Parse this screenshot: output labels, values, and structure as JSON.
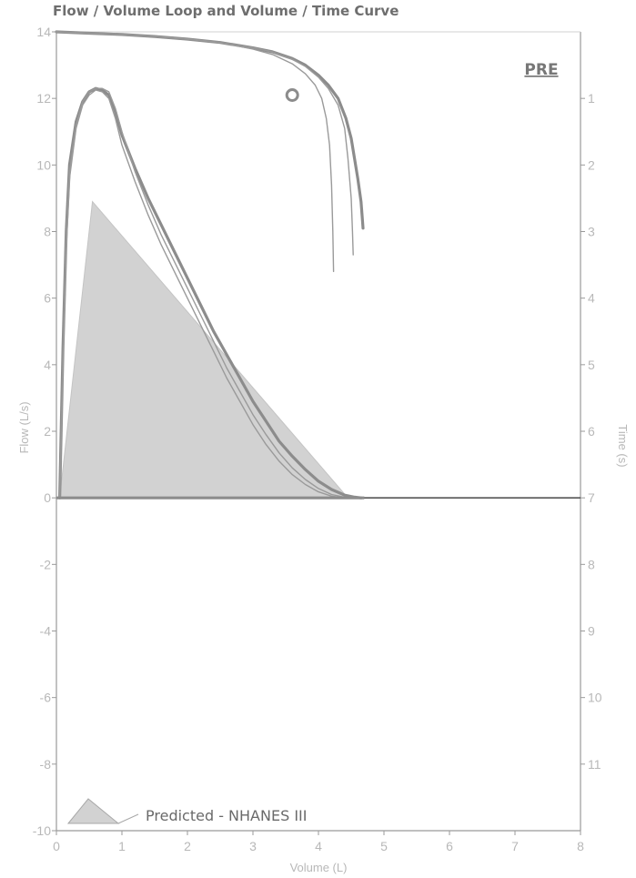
{
  "colors": {
    "predicted_fill": "#d2d2d2",
    "trial_curve": "#9a9a9a",
    "best_curve": "#8c8c8c",
    "axis": "#9a9a9a",
    "zero_line": "#555555"
  },
  "chart_data": {
    "type": "line",
    "title": "Flow / Volume Loop and Volume / Time Curve",
    "label": "PRE",
    "xlabel": "Volume (L)",
    "ylabel": "Flow (L/s)",
    "y2label": "Time (s)",
    "xlim": [
      0,
      8
    ],
    "ylim": [
      -10,
      14
    ],
    "y2lim": [
      0,
      12
    ],
    "y2_inverted": true,
    "xticks": [
      "0",
      "1",
      "2",
      "3",
      "4",
      "5",
      "6",
      "7",
      "8"
    ],
    "yticks": [
      "-10",
      "-8",
      "-6",
      "-4",
      "-2",
      "0",
      "2",
      "4",
      "6",
      "8",
      "10",
      "12",
      "14"
    ],
    "y2ticks": [
      "1",
      "2",
      "3",
      "4",
      "5",
      "6",
      "7",
      "8",
      "9",
      "10",
      "11"
    ],
    "grid": false,
    "legend": {
      "position": "bottom-left",
      "label": "Predicted - NHANES III"
    },
    "predicted": {
      "name": "Predicted - NHANES III",
      "x": [
        0.05,
        0.55,
        4.45
      ],
      "y": [
        0,
        8.9,
        0
      ]
    },
    "series": [
      {
        "kind": "flow_volume",
        "x": [
          0.05,
          0.1,
          0.15,
          0.2,
          0.3,
          0.4,
          0.5,
          0.6,
          0.7,
          0.8,
          0.9,
          1.0,
          1.2,
          1.4,
          1.6,
          1.8,
          2.0,
          2.2,
          2.4,
          2.6,
          2.8,
          3.0,
          3.2,
          3.4,
          3.6,
          3.8,
          4.0,
          4.2,
          4.4,
          4.55,
          4.65
        ],
        "y": [
          0,
          4.5,
          8.0,
          10.0,
          11.3,
          11.9,
          12.2,
          12.3,
          12.25,
          12.1,
          11.6,
          10.9,
          9.9,
          9.0,
          8.2,
          7.4,
          6.6,
          5.8,
          5.0,
          4.3,
          3.6,
          2.9,
          2.3,
          1.7,
          1.25,
          0.85,
          0.5,
          0.25,
          0.08,
          0.02,
          0
        ]
      },
      {
        "kind": "flow_volume",
        "x": [
          0.05,
          0.1,
          0.15,
          0.2,
          0.3,
          0.4,
          0.5,
          0.6,
          0.7,
          0.8,
          0.9,
          1.0,
          1.2,
          1.4,
          1.6,
          1.8,
          2.0,
          2.2,
          2.4,
          2.6,
          2.8,
          3.0,
          3.2,
          3.4,
          3.6,
          3.8,
          4.0,
          4.2,
          4.4
        ],
        "y": [
          0,
          4.0,
          7.5,
          9.6,
          11.1,
          11.8,
          12.1,
          12.25,
          12.2,
          12.0,
          11.4,
          10.6,
          9.5,
          8.5,
          7.6,
          6.8,
          6.0,
          5.2,
          4.4,
          3.6,
          2.9,
          2.2,
          1.6,
          1.1,
          0.7,
          0.4,
          0.18,
          0.05,
          0
        ]
      },
      {
        "kind": "flow_volume",
        "x": [
          0.05,
          0.1,
          0.15,
          0.2,
          0.3,
          0.4,
          0.5,
          0.6,
          0.7,
          0.8,
          0.9,
          1.0,
          1.2,
          1.4,
          1.6,
          1.8,
          2.0,
          2.2,
          2.4,
          2.6,
          2.8,
          3.0,
          3.2,
          3.4,
          3.6,
          3.8,
          4.0,
          4.2,
          4.4,
          4.5
        ],
        "y": [
          0,
          4.2,
          7.8,
          9.8,
          11.2,
          11.9,
          12.2,
          12.3,
          12.3,
          12.2,
          11.7,
          11.0,
          9.8,
          8.8,
          7.9,
          7.1,
          6.3,
          5.5,
          4.7,
          3.9,
          3.2,
          2.5,
          1.9,
          1.35,
          0.9,
          0.55,
          0.28,
          0.1,
          0.02,
          0
        ]
      },
      {
        "kind": "volume_time",
        "x": [
          0,
          0.5,
          1.0,
          1.5,
          2.0,
          2.5,
          3.0,
          3.3,
          3.6,
          3.8,
          4.0,
          4.15,
          4.3,
          4.42,
          4.5,
          4.55,
          4.6,
          4.65,
          4.67,
          4.68
        ],
        "t": [
          0,
          0.02,
          0.04,
          0.07,
          0.11,
          0.16,
          0.24,
          0.3,
          0.4,
          0.5,
          0.65,
          0.8,
          1.0,
          1.3,
          1.6,
          1.9,
          2.2,
          2.55,
          2.8,
          2.95
        ]
      },
      {
        "kind": "volume_time",
        "x": [
          0,
          0.5,
          1.0,
          1.5,
          2.0,
          2.5,
          3.0,
          3.3,
          3.6,
          3.8,
          3.95,
          4.05,
          4.12,
          4.17,
          4.2,
          4.22,
          4.23
        ],
        "t": [
          0,
          0.02,
          0.04,
          0.07,
          0.11,
          0.16,
          0.26,
          0.34,
          0.48,
          0.63,
          0.8,
          1.0,
          1.3,
          1.7,
          2.3,
          3.0,
          3.6
        ]
      },
      {
        "kind": "volume_time",
        "x": [
          0,
          0.5,
          1.0,
          1.5,
          2.0,
          2.5,
          3.0,
          3.3,
          3.6,
          3.8,
          4.0,
          4.15,
          4.3,
          4.4,
          4.45,
          4.5,
          4.52,
          4.53
        ],
        "t": [
          0,
          0.02,
          0.04,
          0.07,
          0.11,
          0.16,
          0.24,
          0.3,
          0.41,
          0.52,
          0.68,
          0.85,
          1.1,
          1.45,
          1.9,
          2.5,
          3.0,
          3.35
        ]
      }
    ],
    "marker": {
      "x": 3.6,
      "t": 0.95
    }
  }
}
